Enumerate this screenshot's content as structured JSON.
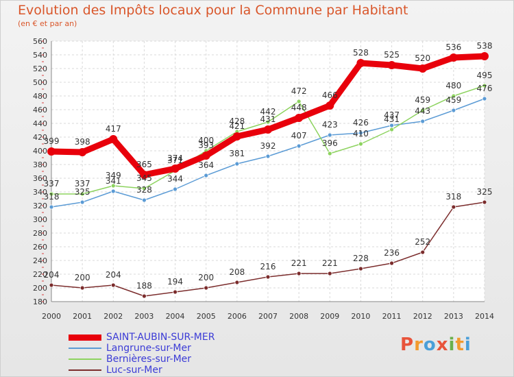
{
  "title": "Evolution des Impôts locaux pour la Commune par Habitant",
  "subtitle": "(en € et par an)",
  "logo": {
    "letters": [
      "P",
      "r",
      "o",
      "x",
      "i",
      "t",
      "i"
    ],
    "colors": [
      "#e8533a",
      "#f29a2e",
      "#4a9fd8",
      "#e8533a",
      "#6ab04c",
      "#f29a2e",
      "#4a9fd8"
    ]
  },
  "chart_data": {
    "type": "line",
    "title": "Evolution des Impôts locaux pour la Commune par Habitant",
    "subtitle": "(en € et par an)",
    "xlabel": "",
    "ylabel": "",
    "x": [
      "2000",
      "2001",
      "2002",
      "2003",
      "2004",
      "2005",
      "2006",
      "2007",
      "2008",
      "2009",
      "2010",
      "2011",
      "2012",
      "2013",
      "2014"
    ],
    "ylim": [
      180,
      560
    ],
    "yticks": [
      180,
      200,
      220,
      240,
      260,
      280,
      300,
      320,
      340,
      360,
      380,
      400,
      420,
      440,
      460,
      480,
      500,
      520,
      540,
      560
    ],
    "grid": true,
    "legend_position": "bottom-left",
    "series": [
      {
        "name": "SAINT-AUBIN-SUR-MER",
        "color": "#e8000b",
        "values": [
          399,
          398,
          417,
          365,
          374,
          393,
          421,
          431,
          448,
          466,
          528,
          525,
          520,
          536,
          538
        ]
      },
      {
        "name": "Langrune-sur-Mer",
        "color": "#5b9bd5",
        "values": [
          318,
          325,
          341,
          328,
          344,
          364,
          381,
          392,
          407,
          423,
          426,
          437,
          443,
          459,
          476
        ]
      },
      {
        "name": "Bernières-sur-Mer",
        "color": "#8dd35f",
        "values": [
          337,
          337,
          349,
          345,
          371,
          400,
          428,
          442,
          472,
          396,
          410,
          431,
          459,
          480,
          495
        ]
      },
      {
        "name": "Luc-sur-Mer",
        "color": "#7b2c2c",
        "values": [
          204,
          200,
          204,
          188,
          194,
          200,
          208,
          216,
          221,
          221,
          228,
          236,
          252,
          318,
          325
        ]
      }
    ]
  }
}
